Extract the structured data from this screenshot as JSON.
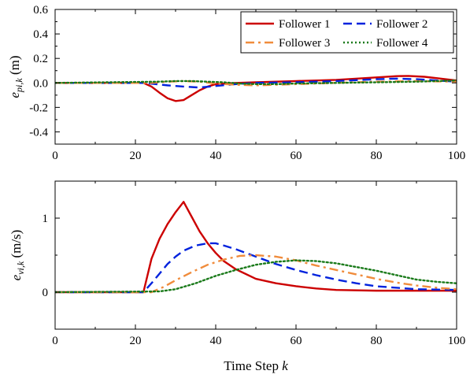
{
  "chart_data": [
    {
      "type": "line",
      "ylabel": "e_{pi,k} (m)",
      "ylabel_parts": {
        "base": "e",
        "sub": "pi,k",
        "unit": " (m)"
      },
      "xlim": [
        0,
        100
      ],
      "ylim": [
        -0.5,
        0.6
      ],
      "x_ticks": [
        0,
        20,
        40,
        60,
        80,
        100
      ],
      "x_tick_labels": [
        "0",
        "20",
        "40",
        "60",
        "80",
        "100"
      ],
      "y_ticks": [
        -0.4,
        -0.2,
        0.0,
        0.2,
        0.4,
        0.6
      ],
      "y_tick_labels": [
        "-0.4",
        "-0.2",
        "0.0",
        "0.2",
        "0.4",
        "0.6"
      ],
      "grid": false,
      "legend_position": "top-right",
      "series": [
        {
          "name": "Follower 1",
          "color": "#cc0000",
          "dash": "solid",
          "x": [
            0,
            22,
            24,
            26,
            28,
            30,
            32,
            34,
            36,
            38,
            40,
            45,
            50,
            60,
            70,
            80,
            85,
            88,
            92,
            96,
            100
          ],
          "y": [
            0,
            0,
            -0.03,
            -0.08,
            -0.125,
            -0.148,
            -0.14,
            -0.1,
            -0.06,
            -0.03,
            -0.01,
            0.0,
            0.005,
            0.015,
            0.025,
            0.045,
            0.055,
            0.057,
            0.05,
            0.035,
            0.02
          ]
        },
        {
          "name": "Follower 2",
          "color": "#0022dd",
          "dash": "dashed",
          "x": [
            0,
            22,
            25,
            28,
            32,
            36,
            40,
            45,
            50,
            60,
            70,
            80,
            85,
            90,
            95,
            100
          ],
          "y": [
            0,
            0,
            -0.01,
            -0.02,
            -0.03,
            -0.038,
            -0.025,
            -0.01,
            0.0,
            0.005,
            0.015,
            0.03,
            0.035,
            0.03,
            0.02,
            0.01
          ]
        },
        {
          "name": "Follower 3",
          "color": "#f08c3c",
          "dash": "dashdot",
          "x": [
            0,
            24,
            28,
            32,
            36,
            40,
            45,
            50,
            55,
            60,
            70,
            80,
            90,
            100
          ],
          "y": [
            0,
            0.0,
            0.01,
            0.015,
            0.01,
            -0.005,
            -0.015,
            -0.02,
            -0.015,
            -0.01,
            0.0,
            0.01,
            0.015,
            0.01
          ]
        },
        {
          "name": "Follower 4",
          "color": "#1a7a1a",
          "dash": "dotted",
          "x": [
            0,
            26,
            30,
            34,
            38,
            42,
            46,
            50,
            55,
            60,
            70,
            80,
            90,
            100
          ],
          "y": [
            0,
            0.01,
            0.015,
            0.015,
            0.01,
            0.005,
            -0.005,
            -0.01,
            -0.01,
            -0.005,
            0.0,
            0.005,
            0.01,
            0.02
          ]
        }
      ]
    },
    {
      "type": "line",
      "xlabel": "Time Step k",
      "xlabel_parts": {
        "text": "Time Step ",
        "var": "k"
      },
      "ylabel": "e_{vi,k} (m/s)",
      "ylabel_parts": {
        "base": "e",
        "sub": "vi,k",
        "unit": " (m/s)"
      },
      "xlim": [
        0,
        100
      ],
      "ylim": [
        -0.5,
        1.5
      ],
      "x_ticks": [
        0,
        20,
        40,
        60,
        80,
        100
      ],
      "x_tick_labels": [
        "0",
        "20",
        "40",
        "60",
        "80",
        "100"
      ],
      "y_ticks": [
        0,
        1
      ],
      "y_tick_labels": [
        "0",
        "1"
      ],
      "grid": false,
      "series": [
        {
          "name": "Follower 1",
          "color": "#cc0000",
          "dash": "solid",
          "x": [
            0,
            22,
            24,
            26,
            28,
            30,
            32,
            34,
            36,
            38,
            40,
            42,
            45,
            50,
            55,
            60,
            65,
            70,
            80,
            90,
            100
          ],
          "y": [
            0,
            0,
            0.45,
            0.72,
            0.92,
            1.08,
            1.22,
            1.02,
            0.82,
            0.66,
            0.53,
            0.42,
            0.31,
            0.18,
            0.12,
            0.08,
            0.05,
            0.03,
            0.02,
            0.02,
            0.02
          ]
        },
        {
          "name": "Follower 2",
          "color": "#0022dd",
          "dash": "dashed",
          "x": [
            0,
            22,
            24,
            26,
            28,
            30,
            32,
            35,
            38,
            40,
            42,
            45,
            50,
            55,
            60,
            65,
            70,
            75,
            80,
            90,
            100
          ],
          "y": [
            0,
            0,
            0.12,
            0.25,
            0.38,
            0.48,
            0.56,
            0.63,
            0.66,
            0.66,
            0.63,
            0.58,
            0.48,
            0.38,
            0.3,
            0.23,
            0.17,
            0.12,
            0.08,
            0.04,
            0.03
          ]
        },
        {
          "name": "Follower 3",
          "color": "#f08c3c",
          "dash": "dashdot",
          "x": [
            0,
            24,
            27,
            30,
            34,
            38,
            42,
            46,
            50,
            55,
            60,
            65,
            70,
            75,
            80,
            85,
            90,
            95,
            100
          ],
          "y": [
            0,
            0,
            0.07,
            0.16,
            0.27,
            0.37,
            0.44,
            0.49,
            0.5,
            0.48,
            0.43,
            0.36,
            0.3,
            0.24,
            0.18,
            0.13,
            0.09,
            0.06,
            0.04
          ]
        },
        {
          "name": "Follower 4",
          "color": "#1a7a1a",
          "dash": "dotted",
          "x": [
            0,
            26,
            30,
            35,
            40,
            45,
            50,
            55,
            60,
            65,
            70,
            75,
            80,
            85,
            90,
            95,
            100
          ],
          "y": [
            0,
            0.01,
            0.04,
            0.12,
            0.22,
            0.3,
            0.37,
            0.41,
            0.43,
            0.42,
            0.39,
            0.34,
            0.29,
            0.23,
            0.17,
            0.14,
            0.12
          ]
        }
      ]
    }
  ]
}
